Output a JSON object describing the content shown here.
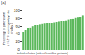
{
  "chart_data": {
    "type": "bar",
    "title": "(a)",
    "xlabel": "Individual sites (with at least five patients)",
    "ylabel": "Percentage of patients with\n≥ 37.5°C receiving antipyretic\non day 1",
    "categories": [
      null,
      null,
      null,
      null,
      null,
      null,
      null,
      null,
      null,
      null,
      null,
      null,
      null,
      null,
      null,
      null,
      null,
      null,
      null,
      null,
      null,
      null,
      null,
      null,
      null,
      null
    ],
    "values": [
      46,
      50,
      55,
      57,
      60,
      63,
      63,
      65,
      66,
      67,
      68,
      68,
      69,
      70,
      71,
      72,
      73,
      74,
      75,
      77,
      78,
      80,
      82,
      83,
      85,
      88
    ],
    "color": "#5cb85c",
    "ylim": [
      0,
      110
    ],
    "yticks": [
      0,
      20,
      40,
      60,
      80,
      100
    ],
    "grid": false,
    "tick_labels": "y"
  }
}
